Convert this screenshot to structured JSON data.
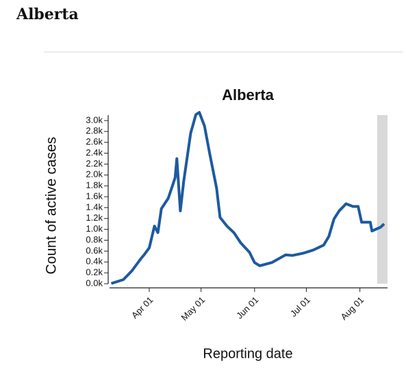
{
  "page": {
    "heading": "Alberta"
  },
  "chart_data": {
    "type": "line",
    "title": "Alberta",
    "x_label": "Reporting date",
    "y_label": "Count of active cases",
    "x": [
      "03-10",
      "03-17",
      "03-22",
      "03-27",
      "03-29",
      "04-01",
      "04-04",
      "04-06",
      "04-08",
      "04-12",
      "04-16",
      "04-17",
      "04-19",
      "04-21",
      "04-25",
      "04-28",
      "04-30",
      "05-03",
      "05-06",
      "05-10",
      "05-12",
      "05-16",
      "05-20",
      "05-24",
      "05-29",
      "06-01",
      "06-04",
      "06-11",
      "06-19",
      "06-23",
      "06-29",
      "07-05",
      "07-11",
      "07-14",
      "07-17",
      "07-20",
      "07-24",
      "07-28",
      "07-31",
      "08-02",
      "08-07",
      "08-08",
      "08-13",
      "08-15"
    ],
    "values": [
      5,
      75,
      240,
      455,
      530,
      660,
      1060,
      940,
      1380,
      1570,
      1950,
      2300,
      1340,
      1890,
      2770,
      3110,
      3150,
      2900,
      2390,
      1760,
      1220,
      1060,
      940,
      750,
      580,
      390,
      330,
      390,
      530,
      520,
      560,
      620,
      710,
      870,
      1190,
      1340,
      1470,
      1420,
      1420,
      1130,
      1130,
      970,
      1040,
      1100
    ],
    "color": "#1d5aa0",
    "xlim": [
      "03-09",
      "08-17"
    ],
    "xticks": [
      {
        "value": "04-01",
        "label": "Apr 01"
      },
      {
        "value": "05-01",
        "label": "May 01"
      },
      {
        "value": "06-01",
        "label": "Jun 01"
      },
      {
        "value": "07-01",
        "label": "Jul 01"
      },
      {
        "value": "08-01",
        "label": "Aug 01"
      }
    ],
    "ylim": [
      0,
      3100
    ],
    "yticks": [
      {
        "value": 0,
        "label": "0.0k"
      },
      {
        "value": 200,
        "label": "0.2k"
      },
      {
        "value": 400,
        "label": "0.4k"
      },
      {
        "value": 600,
        "label": "0.6k"
      },
      {
        "value": 800,
        "label": "0.8k"
      },
      {
        "value": 1000,
        "label": "1.0k"
      },
      {
        "value": 1200,
        "label": "1.2k"
      },
      {
        "value": 1400,
        "label": "1.4k"
      },
      {
        "value": 1600,
        "label": "1.6k"
      },
      {
        "value": 1800,
        "label": "1.8k"
      },
      {
        "value": 2000,
        "label": "2.0k"
      },
      {
        "value": 2200,
        "label": "2.2k"
      },
      {
        "value": 2400,
        "label": "2.4k"
      },
      {
        "value": 2600,
        "label": "2.6k"
      },
      {
        "value": 2800,
        "label": "2.8k"
      },
      {
        "value": 3000,
        "label": "3.0k"
      }
    ],
    "highlight_range": [
      "08-11",
      "08-17"
    ],
    "highlight_color": "#d9d9d9"
  }
}
